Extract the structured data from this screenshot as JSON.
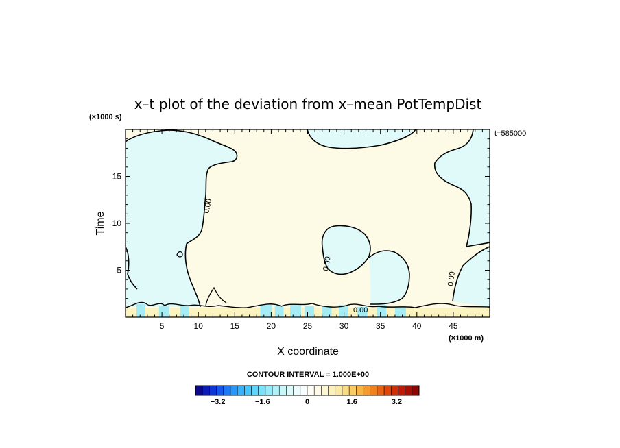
{
  "chart_data": {
    "type": "contour",
    "title": "x–t plot of the deviation from x–mean PotTempDist",
    "xlabel": "X coordinate",
    "ylabel": "Time",
    "x_unit": "(×1000 m)",
    "y_unit": "(×1000 s)",
    "time_stamp": "t=585000",
    "xlim": [
      0,
      50
    ],
    "ylim": [
      0,
      20
    ],
    "x_ticks": [
      5,
      10,
      15,
      20,
      25,
      30,
      35,
      40,
      45
    ],
    "y_ticks": [
      5,
      10,
      15
    ],
    "contour_label": "0.00",
    "contour_interval_text": "CONTOUR INTERVAL = 1.000E+00",
    "regions": [
      {
        "sign": "positive",
        "color": "#fdfbe6",
        "description": "central domain"
      },
      {
        "sign": "negative",
        "color": "#e0fafa",
        "description": "left region x<10"
      },
      {
        "sign": "negative",
        "color": "#e0fafa",
        "description": "top center x 25-35"
      },
      {
        "sign": "negative",
        "color": "#e0fafa",
        "description": "right region x>43"
      },
      {
        "sign": "negative",
        "color": "#e0fafa",
        "description": "closed cells near x 30-38, t 4-9"
      },
      {
        "sign": "positive",
        "color": "#fbf3c0",
        "description": "bottom strip t<1"
      },
      {
        "sign": "negative",
        "color": "#a6ecf5",
        "description": "bottom patches x 18-38"
      }
    ],
    "colorbar": {
      "min": -4.0,
      "max": 4.0,
      "ticks": [
        "−3.2",
        "−1.6",
        "0",
        "1.6",
        "3.2"
      ],
      "tick_values": [
        -3.2,
        -1.6,
        0,
        1.6,
        3.2
      ],
      "colors": [
        "#0a0a8a",
        "#0c1cb4",
        "#0e36d4",
        "#1656ea",
        "#1d78f6",
        "#2896fb",
        "#34b2fd",
        "#45c6fd",
        "#5cd6fc",
        "#78e2fb",
        "#96ebfa",
        "#b2f1f9",
        "#cbf6f9",
        "#ddf9f9",
        "#ecfcfc",
        "#f8fefe",
        "#fffff5",
        "#fffbe6",
        "#fdf6d2",
        "#fcf0bd",
        "#fbe8a2",
        "#fadc84",
        "#f8cb63",
        "#f6b544",
        "#f39b2c",
        "#ef801c",
        "#e96412",
        "#e0470c",
        "#d22e08",
        "#c01a06",
        "#a90d04",
        "#8e0602"
      ]
    }
  }
}
